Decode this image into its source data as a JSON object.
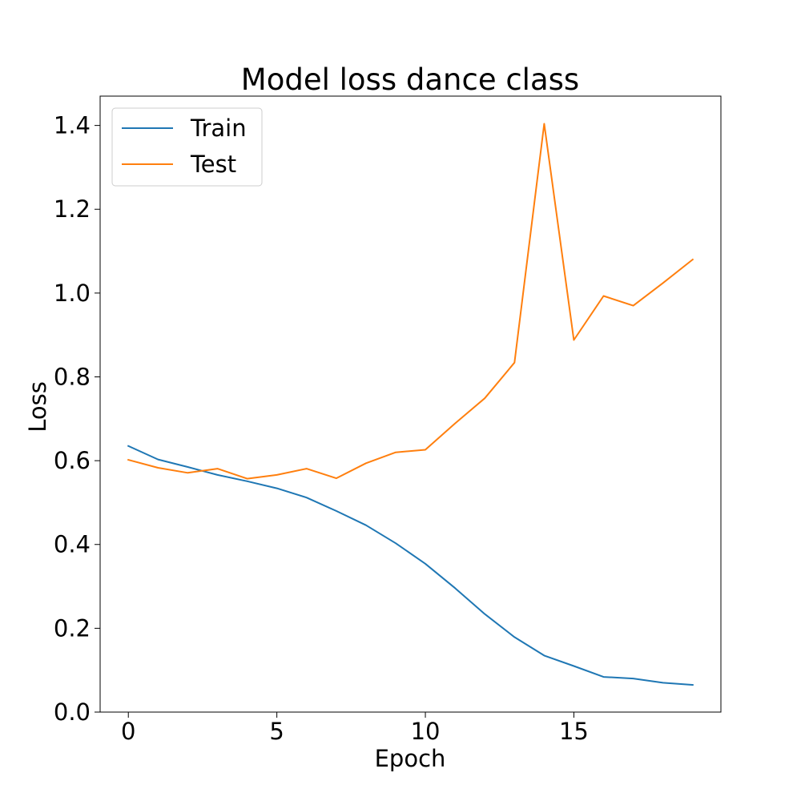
{
  "chart_data": {
    "type": "line",
    "title": "Model loss dance class",
    "xlabel": "Epoch",
    "ylabel": "Loss",
    "xlim": [
      -0.95,
      19.95
    ],
    "ylim": [
      0.0,
      1.47
    ],
    "xticks": [
      0,
      5,
      10,
      15
    ],
    "xtick_labels": [
      "0",
      "5",
      "10",
      "15"
    ],
    "yticks": [
      0.0,
      0.2,
      0.4,
      0.6,
      0.8,
      1.0,
      1.2,
      1.4
    ],
    "ytick_labels": [
      "0.0",
      "0.2",
      "0.4",
      "0.6",
      "0.8",
      "1.0",
      "1.2",
      "1.4"
    ],
    "grid": false,
    "legend_position": "top-left",
    "x": [
      0,
      1,
      2,
      3,
      4,
      5,
      6,
      7,
      8,
      9,
      10,
      11,
      12,
      13,
      14,
      15,
      16,
      17,
      18,
      19
    ],
    "series": [
      {
        "name": "Train",
        "color": "#1f77b4",
        "values": [
          0.635,
          0.603,
          0.585,
          0.566,
          0.551,
          0.534,
          0.512,
          0.48,
          0.446,
          0.403,
          0.354,
          0.296,
          0.234,
          0.179,
          0.135,
          0.11,
          0.084,
          0.08,
          0.07,
          0.065
        ]
      },
      {
        "name": "Test",
        "color": "#ff7f0e",
        "values": [
          0.602,
          0.583,
          0.571,
          0.581,
          0.557,
          0.566,
          0.581,
          0.558,
          0.594,
          0.62,
          0.626,
          0.689,
          0.749,
          0.834,
          1.404,
          0.888,
          0.993,
          0.97,
          1.024,
          1.08
        ]
      }
    ]
  }
}
